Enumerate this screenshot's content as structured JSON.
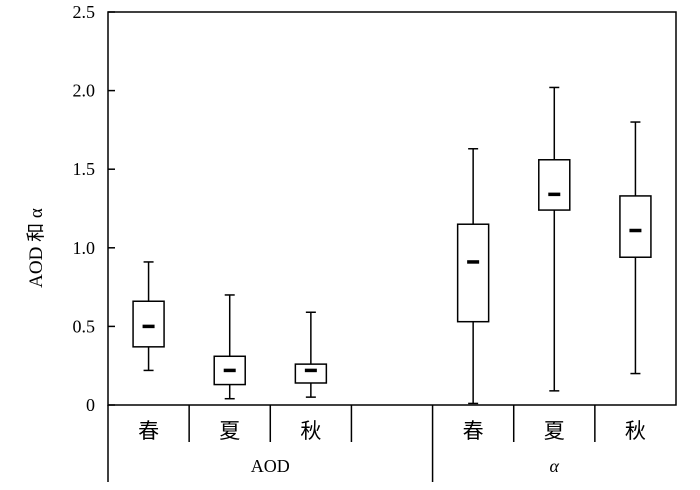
{
  "chart_data": {
    "type": "boxplot",
    "ylabel": "AOD 和 α",
    "ylim": [
      0,
      2.5
    ],
    "yticks": [
      "0",
      "0.5",
      "1.0",
      "1.5",
      "2.0",
      "2.5"
    ],
    "grid": false,
    "groups": [
      {
        "label": "AOD",
        "categories": [
          "春",
          "夏",
          "秋"
        ]
      },
      {
        "label": "α",
        "categories": [
          "春",
          "夏",
          "秋"
        ]
      }
    ],
    "boxes": [
      {
        "group": "AOD",
        "category": "春",
        "min": 0.22,
        "q1": 0.37,
        "median": 0.5,
        "q3": 0.66,
        "max": 0.91
      },
      {
        "group": "AOD",
        "category": "夏",
        "min": 0.04,
        "q1": 0.13,
        "median": 0.22,
        "q3": 0.31,
        "max": 0.7
      },
      {
        "group": "AOD",
        "category": "秋",
        "min": 0.05,
        "q1": 0.14,
        "median": 0.22,
        "q3": 0.26,
        "max": 0.59
      },
      {
        "group": "α",
        "category": "春",
        "min": 0.01,
        "q1": 0.53,
        "median": 0.91,
        "q3": 1.15,
        "max": 1.63
      },
      {
        "group": "α",
        "category": "夏",
        "min": 0.09,
        "q1": 1.24,
        "median": 1.34,
        "q3": 1.56,
        "max": 2.02
      },
      {
        "group": "α",
        "category": "秋",
        "min": 0.2,
        "q1": 0.94,
        "median": 1.11,
        "q3": 1.33,
        "max": 1.8
      }
    ]
  }
}
